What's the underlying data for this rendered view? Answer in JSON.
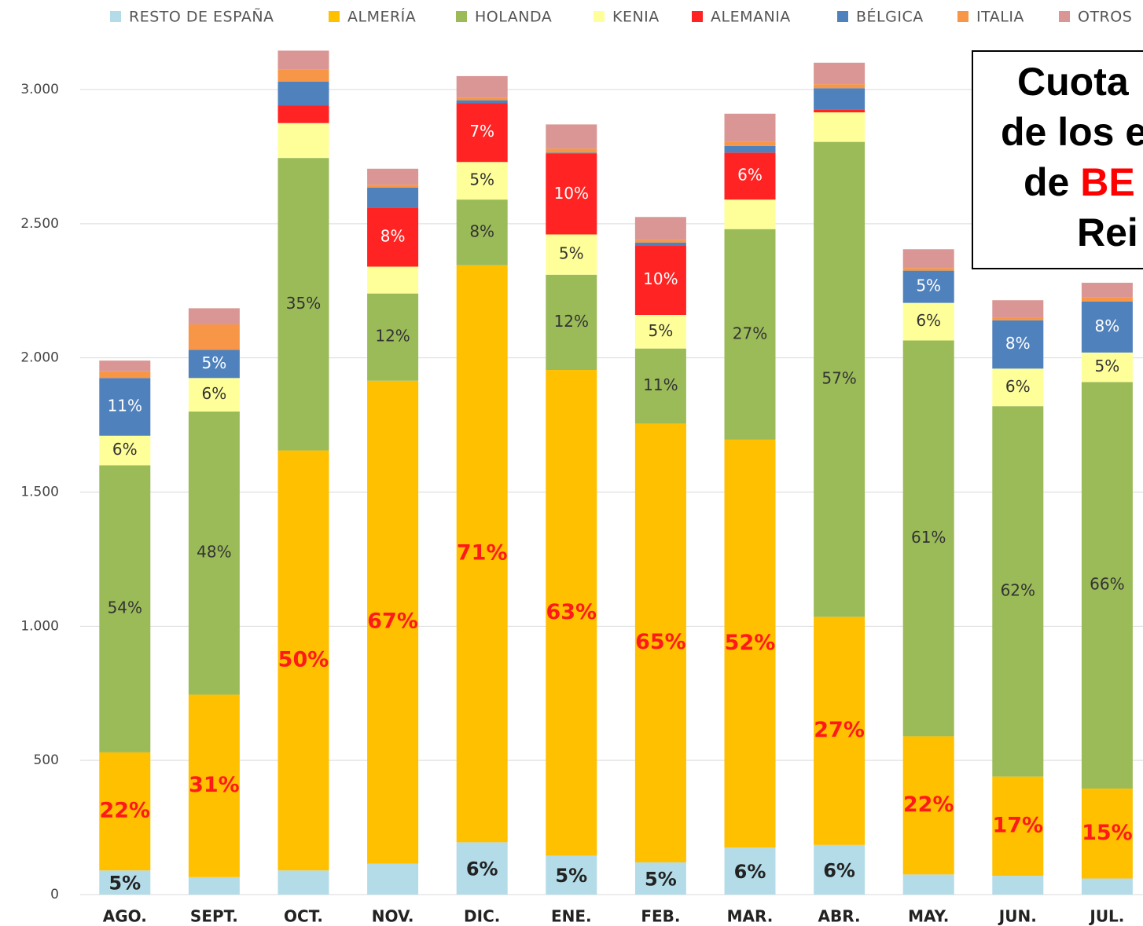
{
  "chart_data": {
    "type": "stacked_bar",
    "categories": [
      "AGO.",
      "SEPT.",
      "OCT.",
      "NOV.",
      "DIC.",
      "ENE.",
      "FEB.",
      "MAR.",
      "ABR.",
      "MAY.",
      "JUN.",
      "JUL."
    ],
    "series": [
      {
        "name": "RESTO DE ESPAÑA",
        "color": "#b4dce8",
        "values": [
          90,
          65,
          90,
          115,
          195,
          145,
          120,
          175,
          185,
          75,
          70,
          60
        ],
        "percent_labels": [
          "5%",
          null,
          null,
          null,
          "6%",
          "5%",
          "5%",
          "6%",
          "6%",
          null,
          null,
          null
        ]
      },
      {
        "name": "ALMERÍA",
        "color": "#ffc000",
        "values": [
          440,
          680,
          1565,
          1800,
          2150,
          1810,
          1635,
          1520,
          850,
          515,
          370,
          335
        ],
        "percent_labels": [
          "22%",
          "31%",
          "50%",
          "67%",
          "71%",
          "63%",
          "65%",
          "52%",
          "27%",
          "22%",
          "17%",
          "15%"
        ]
      },
      {
        "name": "HOLANDA",
        "color": "#9bbb59",
        "values": [
          1070,
          1055,
          1090,
          325,
          245,
          355,
          280,
          785,
          1770,
          1475,
          1380,
          1515
        ],
        "percent_labels": [
          "54%",
          "48%",
          "35%",
          "12%",
          "8%",
          "12%",
          "11%",
          "27%",
          "57%",
          "61%",
          "62%",
          "66%"
        ]
      },
      {
        "name": "KENIA",
        "color": "#ffff99",
        "values": [
          110,
          125,
          130,
          100,
          140,
          150,
          125,
          110,
          110,
          140,
          140,
          110
        ],
        "percent_labels": [
          "6%",
          "6%",
          null,
          null,
          "5%",
          "5%",
          "5%",
          null,
          null,
          "6%",
          "6%",
          "5%"
        ]
      },
      {
        "name": "ALEMANIA",
        "color": "#ff2323",
        "values": [
          0,
          0,
          65,
          220,
          220,
          300,
          260,
          175,
          10,
          0,
          0,
          0
        ],
        "percent_labels": [
          null,
          null,
          null,
          "8%",
          "7%",
          "10%",
          "10%",
          "6%",
          null,
          null,
          null,
          null
        ]
      },
      {
        "name": "BÉLGICA",
        "color": "#4f81bd",
        "values": [
          215,
          105,
          90,
          75,
          10,
          5,
          10,
          25,
          80,
          120,
          180,
          190
        ],
        "percent_labels": [
          "11%",
          "5%",
          null,
          null,
          null,
          null,
          null,
          null,
          null,
          "5%",
          "8%",
          "8%"
        ]
      },
      {
        "name": "ITALIA",
        "color": "#f79646",
        "values": [
          25,
          95,
          45,
          10,
          10,
          15,
          10,
          15,
          15,
          10,
          10,
          15
        ],
        "percent_labels": [
          null,
          null,
          null,
          null,
          null,
          null,
          null,
          null,
          null,
          null,
          null,
          null
        ]
      },
      {
        "name": "OTROS",
        "color": "#d99694",
        "values": [
          40,
          60,
          70,
          60,
          80,
          90,
          85,
          105,
          80,
          70,
          65,
          55
        ],
        "percent_labels": [
          null,
          null,
          null,
          null,
          null,
          null,
          null,
          null,
          null,
          null,
          null,
          null
        ]
      }
    ],
    "ylim": [
      0,
      3200
    ],
    "yticks": [
      0,
      500,
      {
        "value": 1000,
        "label": "1.000"
      },
      {
        "value": 1500,
        "label": "1.500"
      },
      {
        "value": 2000,
        "label": "2.000"
      },
      {
        "value": 2500,
        "label": "2.500"
      },
      {
        "value": 3000,
        "label": "3.000"
      }
    ],
    "grid": true,
    "legend": "top",
    "annotation": {
      "lines": [
        [
          {
            "text": "Cuota",
            "color": "#000000"
          }
        ],
        [
          {
            "text": "de los e",
            "color": "#000000"
          }
        ],
        [
          {
            "text": "de ",
            "color": "#000000"
          },
          {
            "text": "BE",
            "color": "#ff0000"
          }
        ],
        [
          {
            "text": "Rei",
            "color": "#000000"
          }
        ]
      ]
    }
  }
}
